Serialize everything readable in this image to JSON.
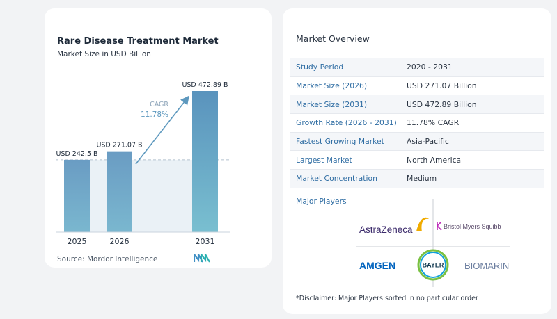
{
  "chart_data": {
    "type": "bar",
    "title": "Rare Disease Treatment Market",
    "subtitle": "Market Size in USD Billion",
    "categories": [
      "2025",
      "2026",
      "2031"
    ],
    "values": [
      242.5,
      271.07,
      472.89
    ],
    "value_labels": [
      "USD 242.5 B",
      "USD 271.07 B",
      "USD 472.89 B"
    ],
    "cagr_label": "CAGR",
    "cagr_value": "11.78%",
    "colors": {
      "bar": "#6b9fc6",
      "bar_last": "#5d98be",
      "band": "#d9e5ef",
      "arrow": "#5d98be"
    }
  },
  "source": "Source:  Mordor Intelligence",
  "overview": {
    "title": "Market Overview",
    "rows": [
      {
        "label": "Study Period",
        "value": "2020 - 2031"
      },
      {
        "label": "Market Size (2026)",
        "value": "USD 271.07 Billion"
      },
      {
        "label": "Market Size (2031)",
        "value": "USD 472.89 Billion"
      },
      {
        "label": "Growth Rate (2026 - 2031)",
        "value": "11.78% CAGR"
      },
      {
        "label": "Fastest Growing Market",
        "value": "Asia-Pacific"
      },
      {
        "label": "Largest Market",
        "value": "North America"
      },
      {
        "label": "Market Concentration",
        "value": "Medium"
      }
    ],
    "players_title": "Major Players",
    "players": [
      "AstraZeneca",
      "Bristol Myers Squibb",
      "AMGEN",
      "BAYER",
      "BIOMARIN"
    ]
  },
  "disclaimer": "*Disclaimer: Major Players sorted in no particular order"
}
